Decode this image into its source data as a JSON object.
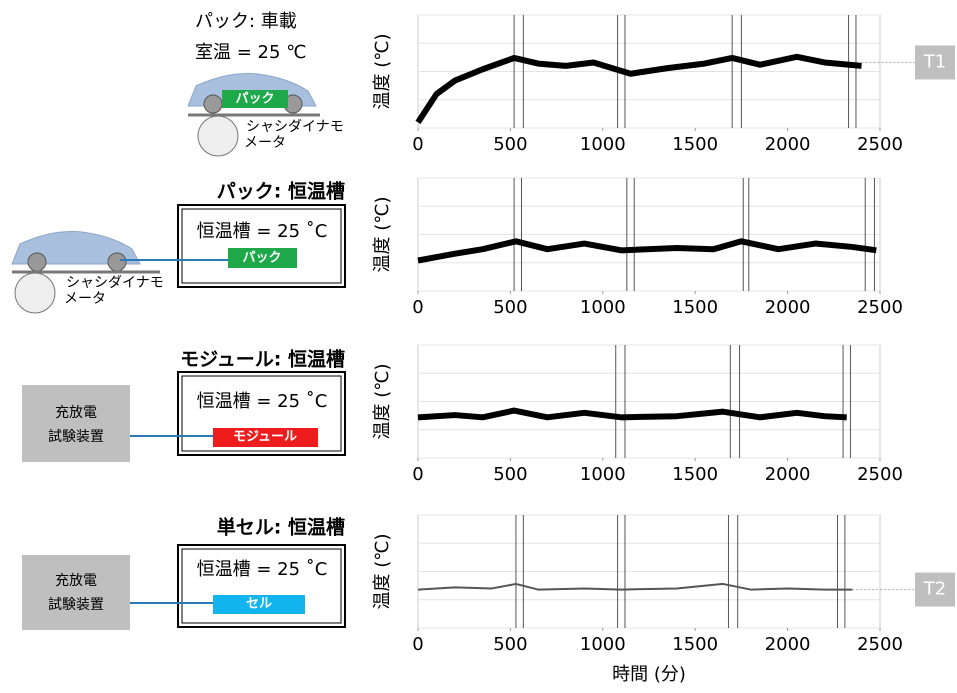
{
  "panels": [
    {
      "title": "パック: 車載",
      "condition": "室温 = 25 ℃",
      "unit": "パック",
      "equipment": [
        "シャシダイナモ",
        "メータ"
      ]
    },
    {
      "title": "パック: 恒温槽",
      "condition": "恒温槽 = 25 ˚C",
      "unit": "パック",
      "equipment": [
        "シャシダイナモ",
        "メータ"
      ]
    },
    {
      "title": "モジュール: 恒温槽",
      "condition": "恒温槽 = 25 ˚C",
      "unit": "モジュール",
      "equipment": [
        "充放電",
        "試験装置"
      ]
    },
    {
      "title": "単セル: 恒温槽",
      "condition": "恒温槽 = 25 ˚C",
      "unit": "セル",
      "equipment": [
        "充放電",
        "試験装置"
      ]
    }
  ],
  "xlabel": "時間 (分)",
  "chart_data": [
    {
      "type": "line",
      "ylabel": "温度 (℃)",
      "xlim": [
        0,
        2500
      ],
      "xticks": [
        0,
        500,
        1000,
        1500,
        2000,
        2500
      ],
      "ylim": [
        0,
        100
      ],
      "yticks": [
        0,
        25,
        50,
        75,
        100
      ],
      "grid": true,
      "x": [
        0,
        100,
        200,
        350,
        520,
        650,
        800,
        950,
        1150,
        1350,
        1550,
        1700,
        1850,
        2050,
        2200,
        2400
      ],
      "series": [
        {
          "color": "#000000",
          "values": [
            5,
            30,
            42,
            52,
            62,
            57,
            55,
            58,
            48,
            53,
            57,
            62,
            56,
            63,
            58,
            55
          ]
        }
      ],
      "vlines": [
        520,
        570,
        1080,
        1120,
        1700,
        1750,
        2330,
        2370
      ],
      "annotation": "T1",
      "annotation_y": 58
    },
    {
      "type": "line",
      "ylabel": "温度 (℃)",
      "xlim": [
        0,
        2500
      ],
      "xticks": [
        0,
        500,
        1000,
        1500,
        2000,
        2500
      ],
      "ylim": [
        0,
        100
      ],
      "yticks": [
        0,
        25,
        50,
        75,
        100
      ],
      "grid": true,
      "x": [
        0,
        200,
        350,
        530,
        700,
        900,
        1100,
        1400,
        1600,
        1750,
        1950,
        2150,
        2350,
        2480
      ],
      "series": [
        {
          "color": "#000000",
          "values": [
            27,
            33,
            37,
            44,
            37,
            42,
            36,
            38,
            37,
            44,
            37,
            42,
            39,
            36
          ]
        }
      ],
      "vlines": [
        520,
        560,
        1130,
        1170,
        1760,
        1790,
        2420,
        2470
      ]
    },
    {
      "type": "line",
      "ylabel": "温度 (℃)",
      "xlim": [
        0,
        2500
      ],
      "xticks": [
        0,
        500,
        1000,
        1500,
        2000,
        2500
      ],
      "ylim": [
        0,
        100
      ],
      "yticks": [
        0,
        25,
        50,
        75,
        100
      ],
      "grid": true,
      "x": [
        0,
        200,
        350,
        520,
        700,
        900,
        1100,
        1400,
        1650,
        1850,
        2050,
        2200,
        2320
      ],
      "series": [
        {
          "color": "#000000",
          "values": [
            36,
            38,
            36,
            42,
            36,
            40,
            36,
            37,
            41,
            36,
            40,
            37,
            36
          ]
        }
      ],
      "vlines": [
        1070,
        1120,
        1690,
        1740,
        2300,
        2340
      ]
    },
    {
      "type": "line",
      "ylabel": "温度 (℃)",
      "xlim": [
        0,
        2500
      ],
      "xticks": [
        0,
        500,
        1000,
        1500,
        2000,
        2500
      ],
      "ylim": [
        0,
        100
      ],
      "yticks": [
        0,
        25,
        50,
        75,
        100
      ],
      "grid": true,
      "x": [
        0,
        200,
        400,
        530,
        650,
        900,
        1100,
        1400,
        1650,
        1800,
        2000,
        2200,
        2350
      ],
      "series": [
        {
          "color": "#555555",
          "values": [
            34,
            36,
            35,
            39,
            34,
            35,
            34,
            35,
            39,
            34,
            35,
            34,
            34
          ]
        }
      ],
      "vlines": [
        530,
        570,
        1080,
        1120,
        1680,
        1730,
        2270,
        2310
      ],
      "annotation": "T2",
      "annotation_y": 34
    }
  ]
}
